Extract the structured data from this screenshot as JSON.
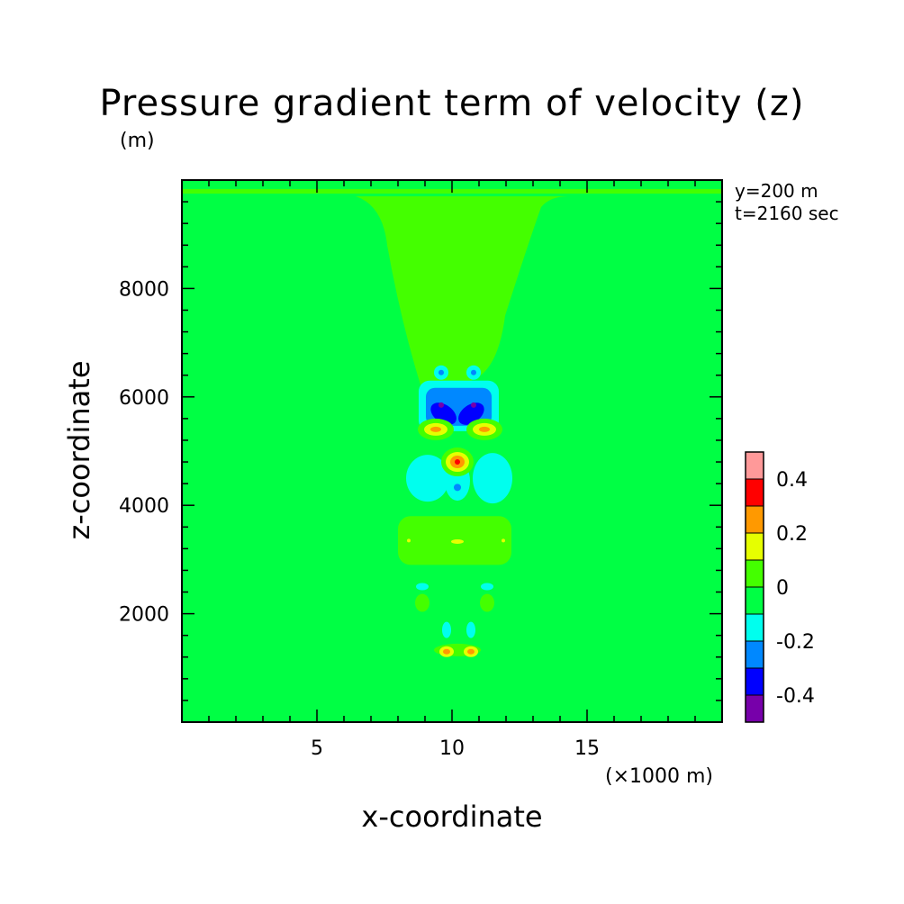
{
  "title": "Pressure gradient term of velocity (z)",
  "z_unit": "(m)",
  "x_unit": "(×1000 m)",
  "info": {
    "y": "y=200 m",
    "t": "t=2160 sec"
  },
  "chart_data": {
    "type": "heatmap",
    "title": "Pressure gradient term of velocity (z)",
    "xlabel": "x-coordinate",
    "ylabel": "z-coordinate",
    "xlim": [
      0,
      20000
    ],
    "ylim": [
      0,
      10000
    ],
    "x_ticks": [
      5,
      10,
      15
    ],
    "y_ticks": [
      2000,
      4000,
      6000,
      8000
    ],
    "colorbar": {
      "labels": [
        "0.4",
        "0.2",
        "0",
        "-0.2",
        "-0.4"
      ],
      "label_values": [
        0.4,
        0.2,
        0,
        -0.2,
        -0.4
      ],
      "levels": [
        {
          "range": [
            0.4,
            0.5
          ],
          "color": "#ff9999"
        },
        {
          "range": [
            0.3,
            0.4
          ],
          "color": "#ff0000"
        },
        {
          "range": [
            0.2,
            0.3
          ],
          "color": "#ff9900"
        },
        {
          "range": [
            0.1,
            0.2
          ],
          "color": "#e6ff00"
        },
        {
          "range": [
            0.0,
            0.1
          ],
          "color": "#44ff00"
        },
        {
          "range": [
            -0.1,
            0.0
          ],
          "color": "#00ff44"
        },
        {
          "range": [
            -0.2,
            -0.1
          ],
          "color": "#00ffee"
        },
        {
          "range": [
            -0.3,
            -0.2
          ],
          "color": "#0088ff"
        },
        {
          "range": [
            -0.4,
            -0.3
          ],
          "color": "#0000ff"
        },
        {
          "range": [
            -0.5,
            -0.4
          ],
          "color": "#7700aa"
        }
      ]
    },
    "background_level": "#00ff44",
    "features": [
      {
        "name": "upper-plume",
        "color": "#44ff00",
        "x_range": [
          7100,
          13300
        ],
        "z_range": [
          6300,
          9800
        ]
      },
      {
        "name": "negative-core",
        "color": "#0088ff",
        "x_range": [
          8900,
          11600
        ],
        "z_range": [
          5500,
          6200
        ]
      },
      {
        "name": "strong-negative-pair",
        "color": "#0000ff",
        "points": [
          [
            9600,
            5800
          ],
          [
            10800,
            5800
          ]
        ]
      },
      {
        "name": "positive-center",
        "color": "#ff0000",
        "points": [
          [
            10200,
            4800
          ]
        ]
      },
      {
        "name": "positive-pair",
        "color": "#ff9900",
        "points": [
          [
            9400,
            5400
          ],
          [
            11200,
            5400
          ],
          [
            9800,
            1300
          ],
          [
            10700,
            1300
          ]
        ]
      },
      {
        "name": "mid-band",
        "color": "#44ff00",
        "x_range": [
          8000,
          12200
        ],
        "z_range": [
          2900,
          3800
        ]
      }
    ]
  }
}
